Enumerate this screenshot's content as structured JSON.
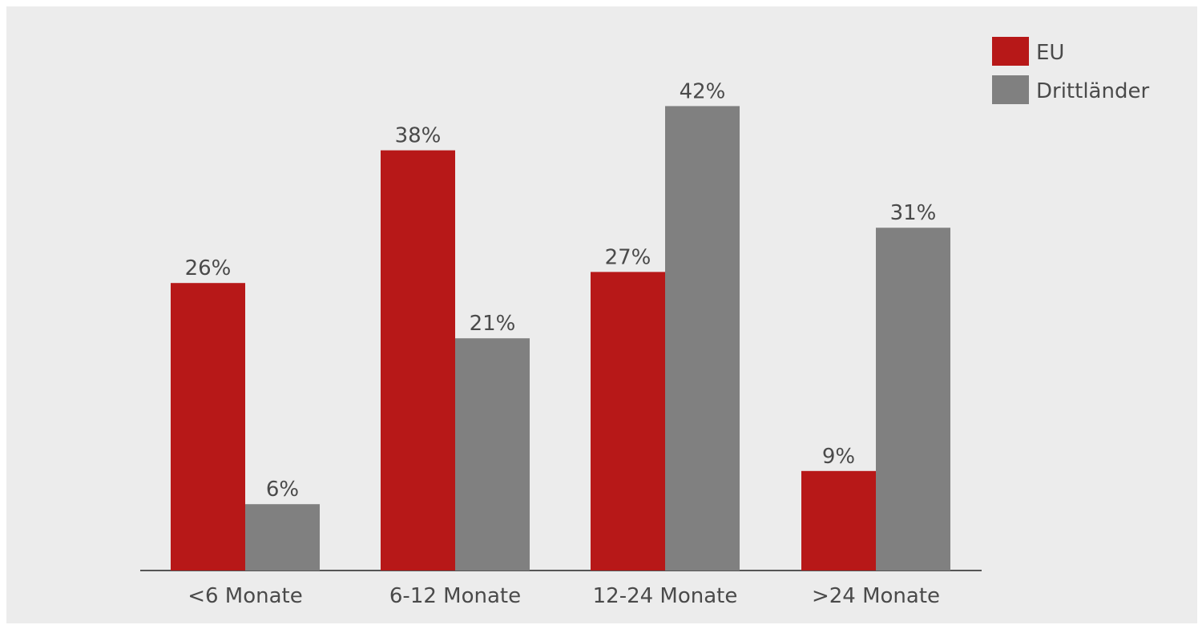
{
  "chart_data": {
    "type": "bar",
    "categories": [
      "<6 Monate",
      "6-12 Monate",
      "12-24 Monate",
      ">24 Monate"
    ],
    "series": [
      {
        "name": "EU",
        "values": [
          26,
          38,
          27,
          9
        ],
        "labels": [
          "26%",
          "38%",
          "27%",
          "9%"
        ],
        "color": "#b71818"
      },
      {
        "name": "Drittländer",
        "values": [
          6,
          21,
          42,
          31
        ],
        "labels": [
          "6%",
          "21%",
          "42%",
          "31%"
        ],
        "color": "#808080"
      }
    ],
    "ylim": [
      0,
      45
    ],
    "grid": false,
    "legend": "top-right",
    "title": "",
    "xlabel": "",
    "ylabel": ""
  }
}
